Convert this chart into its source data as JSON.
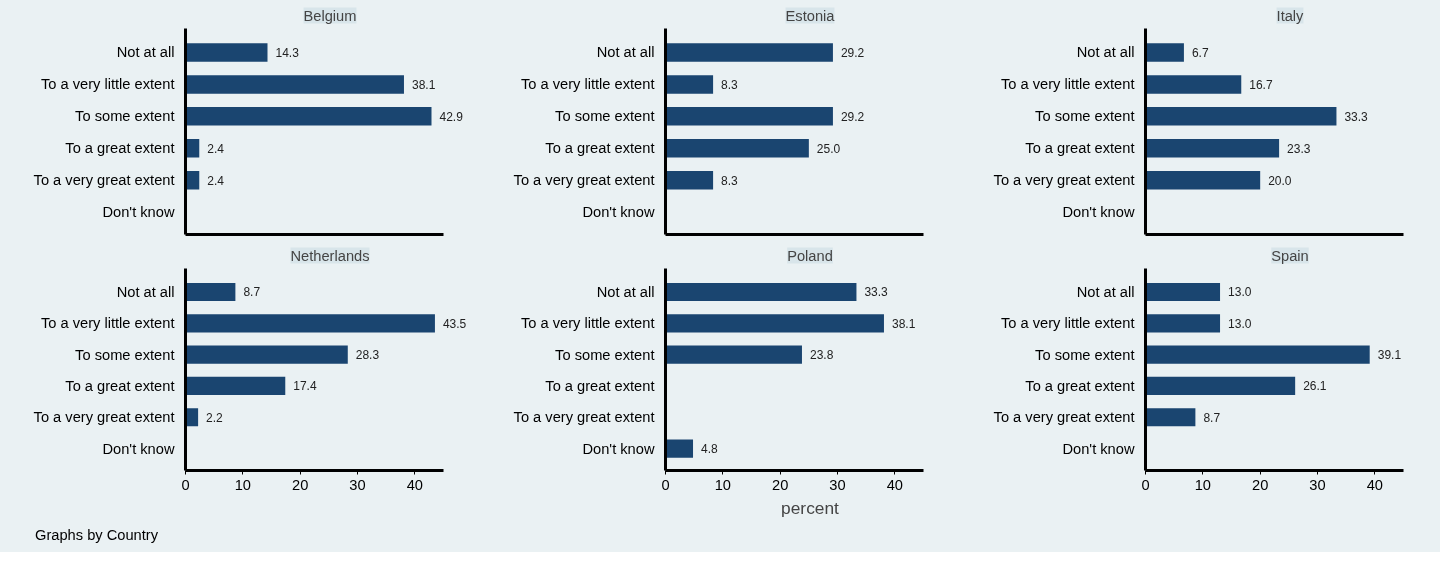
{
  "chart_data": [
    {
      "type": "bar",
      "orientation": "horizontal",
      "title": "Belgium",
      "categories": [
        "Not at all",
        "To a very little extent",
        "To some extent",
        "To a great extent",
        "To a very great extent",
        "Don't know"
      ],
      "values": [
        14.3,
        38.1,
        42.9,
        2.4,
        2.4,
        null
      ],
      "value_labels": [
        "14.3",
        "38.1",
        "42.9",
        "2.4",
        "2.4",
        null
      ],
      "color": "#1a4570",
      "xlim": [
        0,
        45
      ],
      "xticks": [
        0,
        10,
        20,
        30,
        40
      ],
      "tick_labels": "y",
      "grid": false,
      "legend": false
    },
    {
      "type": "bar",
      "orientation": "horizontal",
      "title": "Estonia",
      "categories": [
        "Not at all",
        "To a very little extent",
        "To some extent",
        "To a great extent",
        "To a very great extent",
        "Don't know"
      ],
      "values": [
        29.2,
        8.3,
        29.2,
        25.0,
        8.3,
        null
      ],
      "value_labels": [
        "29.2",
        "8.3",
        "29.2",
        "25.0",
        "8.3",
        null
      ],
      "color": "#1a4570",
      "xlim": [
        0,
        45
      ],
      "xticks": [
        0,
        10,
        20,
        30,
        40
      ],
      "tick_labels": "y",
      "grid": false,
      "legend": false
    },
    {
      "type": "bar",
      "orientation": "horizontal",
      "title": "Italy",
      "categories": [
        "Not at all",
        "To a very little extent",
        "To some extent",
        "To a great extent",
        "To a very great extent",
        "Don't know"
      ],
      "values": [
        6.7,
        16.7,
        33.3,
        23.3,
        20.0,
        null
      ],
      "value_labels": [
        "6.7",
        "16.7",
        "33.3",
        "23.3",
        "20.0",
        null
      ],
      "color": "#1a4570",
      "xlim": [
        0,
        45
      ],
      "xticks": [
        0,
        10,
        20,
        30,
        40
      ],
      "tick_labels": "y",
      "grid": false,
      "legend": false
    },
    {
      "type": "bar",
      "orientation": "horizontal",
      "title": "Netherlands",
      "categories": [
        "Not at all",
        "To a very little extent",
        "To some extent",
        "To a great extent",
        "To a very great extent",
        "Don't know"
      ],
      "values": [
        8.7,
        43.5,
        28.3,
        17.4,
        2.2,
        null
      ],
      "value_labels": [
        "8.7",
        "43.5",
        "28.3",
        "17.4",
        "2.2",
        null
      ],
      "color": "#1a4570",
      "xlim": [
        0,
        45
      ],
      "xticks": [
        0,
        10,
        20,
        30,
        40
      ],
      "grid": false,
      "legend": false,
      "annotations": [
        "Graphs by Country"
      ]
    },
    {
      "type": "bar",
      "orientation": "horizontal",
      "title": "Poland",
      "categories": [
        "Not at all",
        "To a very little extent",
        "To some extent",
        "To a great extent",
        "To a very great extent",
        "Don't know"
      ],
      "values": [
        33.3,
        38.1,
        23.8,
        null,
        null,
        4.8
      ],
      "value_labels": [
        "33.3",
        "38.1",
        "23.8",
        null,
        null,
        "4.8"
      ],
      "color": "#1a4570",
      "xlim": [
        0,
        45
      ],
      "xticks": [
        0,
        10,
        20,
        30,
        40
      ],
      "xlabel": "percent",
      "grid": false,
      "legend": false
    },
    {
      "type": "bar",
      "orientation": "horizontal",
      "title": "Spain",
      "categories": [
        "Not at all",
        "To a very little extent",
        "To some extent",
        "To a great extent",
        "To a very great extent",
        "Don't know"
      ],
      "values": [
        13.0,
        13.0,
        39.1,
        26.1,
        8.7,
        null
      ],
      "value_labels": [
        "13.0",
        "13.0",
        "39.1",
        "26.1",
        "8.7",
        null
      ],
      "color": "#1a4570",
      "xlim": [
        0,
        45
      ],
      "xticks": [
        0,
        10,
        20,
        30,
        40
      ],
      "grid": false,
      "legend": false
    }
  ]
}
